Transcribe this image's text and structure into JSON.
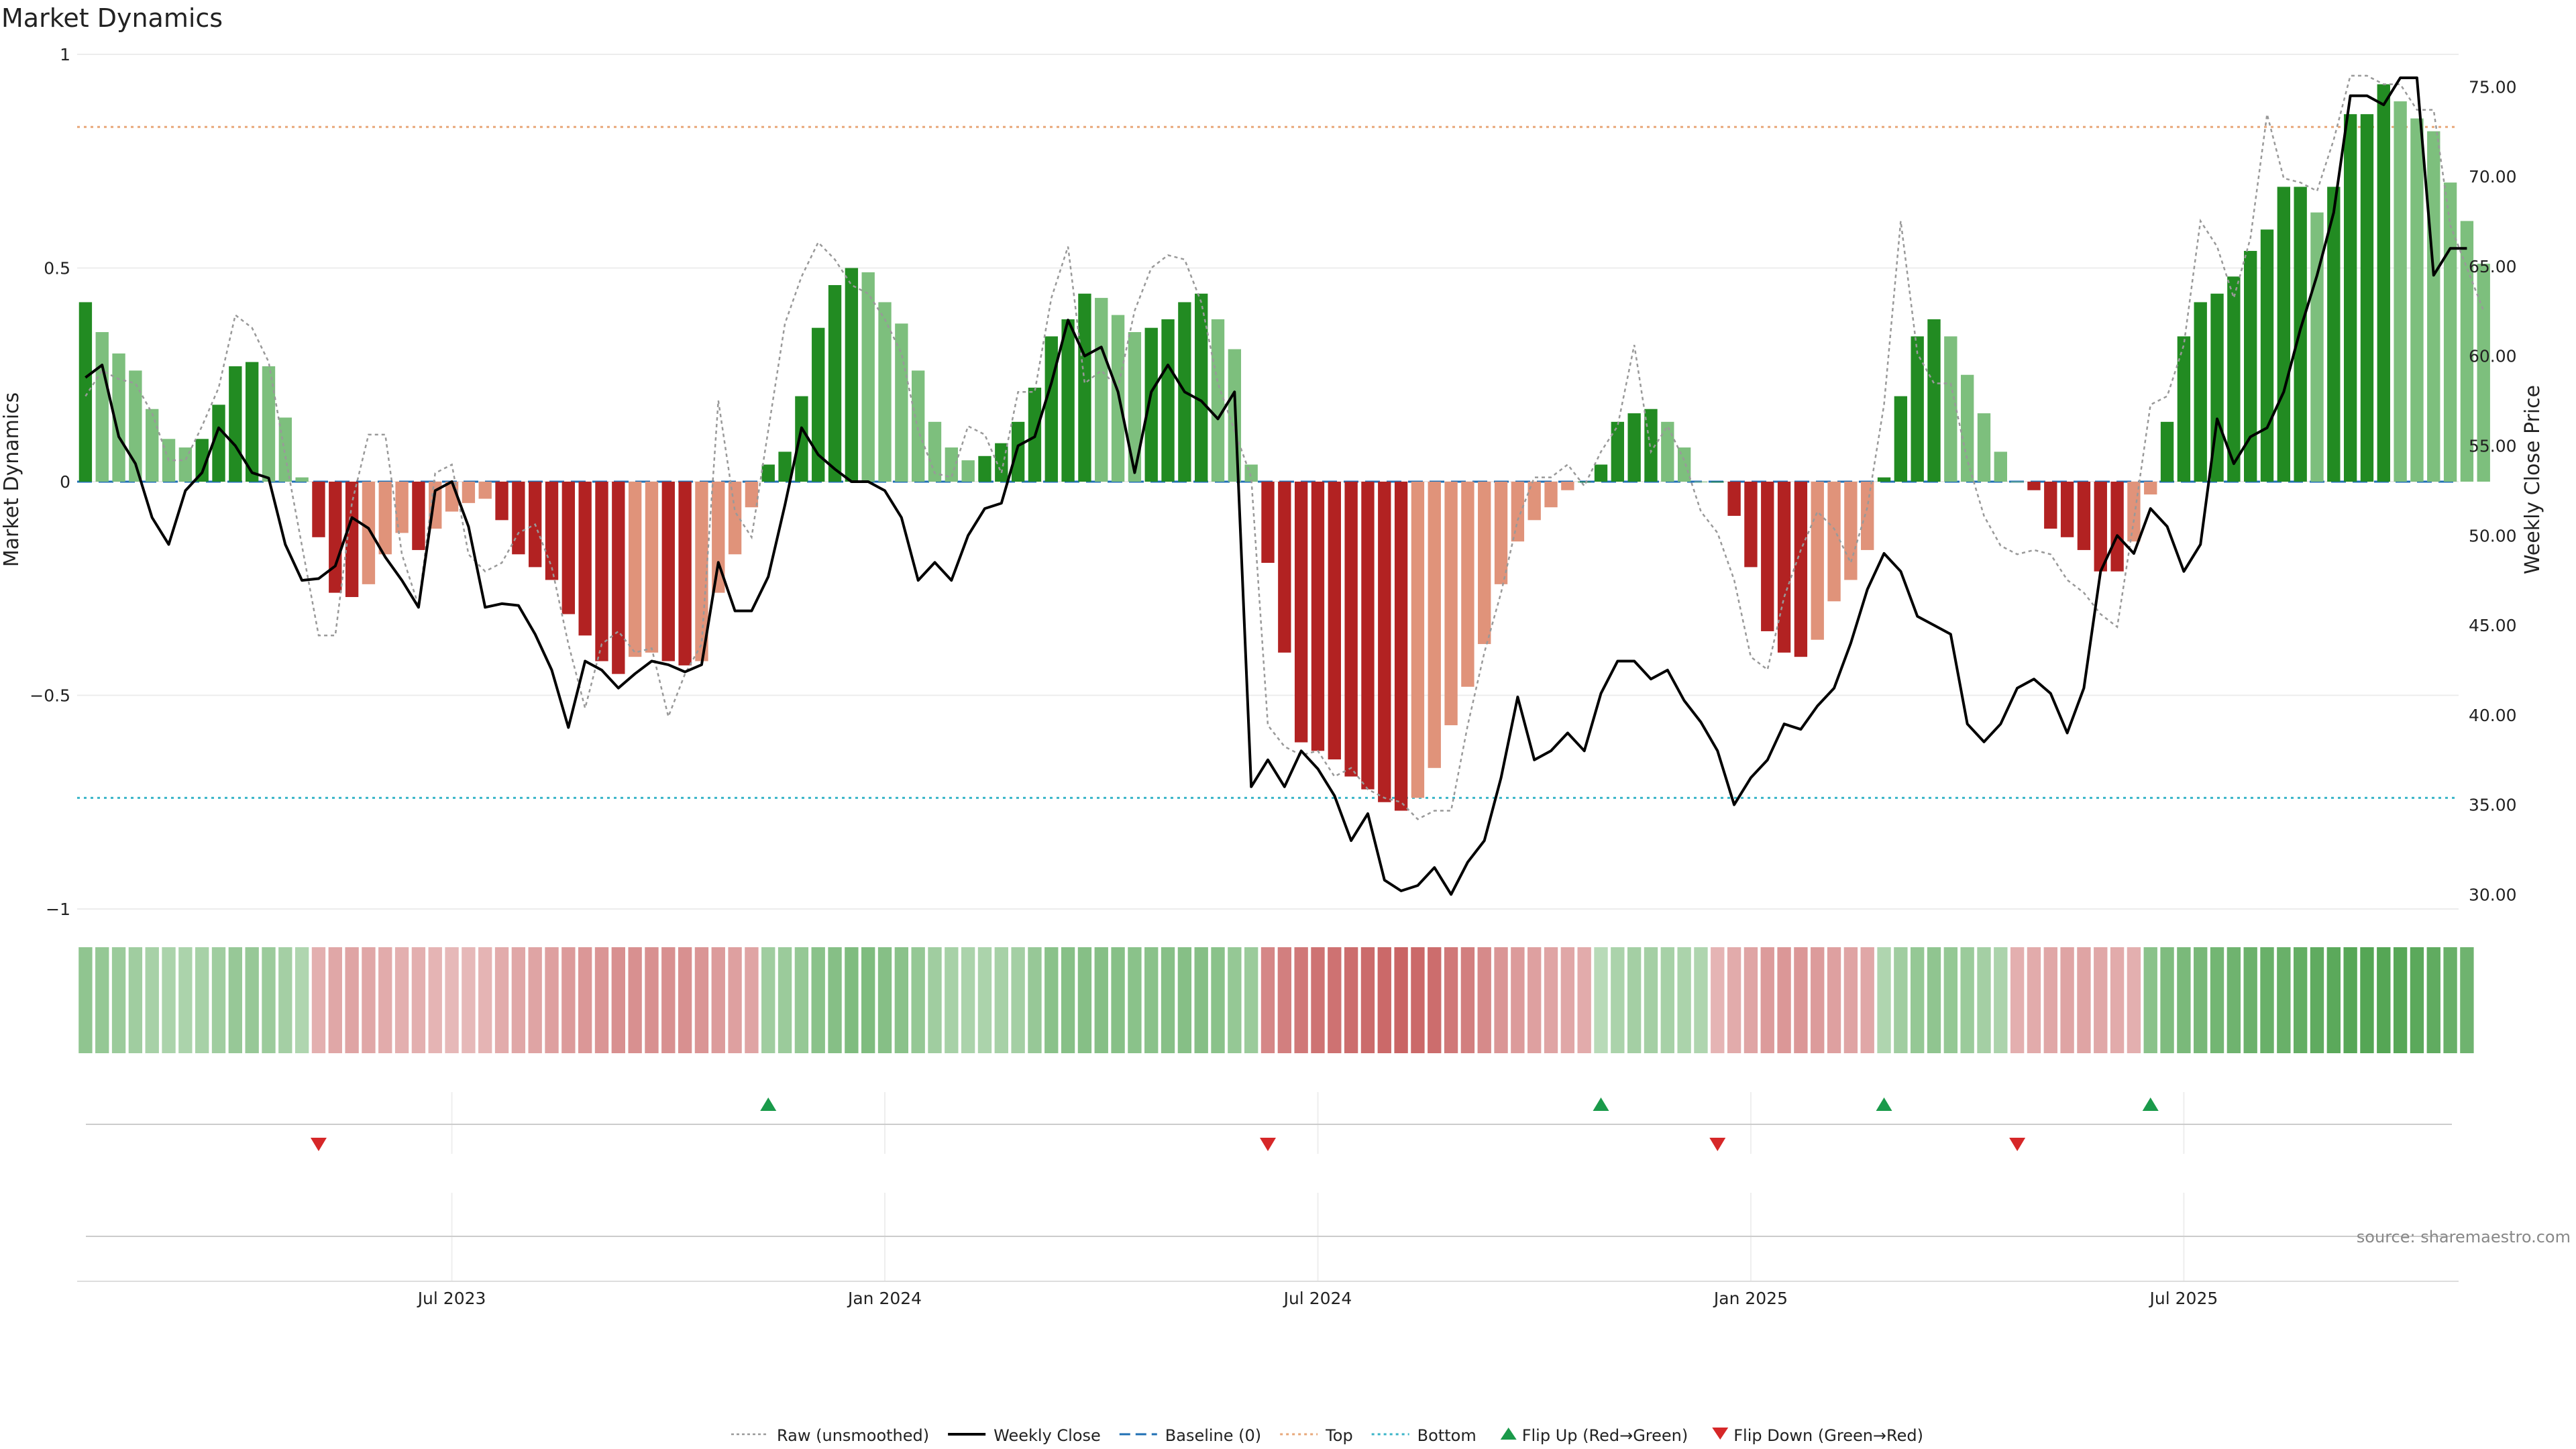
{
  "title": "Market Dynamics",
  "source": "source: sharemaestro.com",
  "colors": {
    "strong_green": "#228b22",
    "light_green": "#7dbf7d",
    "strong_red": "#b22222",
    "light_red": "#e0937a",
    "close": "#000000",
    "raw": "#999999",
    "baseline": "#1f6fb4",
    "top": "#e8a87a",
    "bottom": "#3ab5c8",
    "flip_up": "#1a9a4a",
    "flip_down": "#d62728"
  },
  "legend": [
    {
      "key": "raw",
      "label": "Raw (unsmoothed)",
      "style": "dotted-gray"
    },
    {
      "key": "close",
      "label": "Weekly Close",
      "style": "solid-black"
    },
    {
      "key": "baseline",
      "label": "Baseline (0)",
      "style": "dashed-blue"
    },
    {
      "key": "top",
      "label": "Top",
      "style": "dotted-orange"
    },
    {
      "key": "bottom",
      "label": "Bottom",
      "style": "dotted-cyan"
    },
    {
      "key": "flip_up",
      "label": "Flip Up (Red→Green)",
      "style": "triangle-up"
    },
    {
      "key": "flip_down",
      "label": "Flip Down (Green→Red)",
      "style": "triangle-down"
    }
  ],
  "chart_data": {
    "type": "bar",
    "title": "Market Dynamics",
    "ylabel_left": "Market Dynamics",
    "ylabel_right": "Weekly Close Price",
    "ylim_left": [
      -1.05,
      1.05
    ],
    "ylim_right": [
      28,
      78
    ],
    "yticks_left": [
      {
        "v": 1,
        "label": "1"
      },
      {
        "v": 0.5,
        "label": "0.5"
      },
      {
        "v": 0,
        "label": "0"
      },
      {
        "v": -0.5,
        "label": "−0.5"
      },
      {
        "v": -1,
        "label": "−1"
      }
    ],
    "yticks_right": [
      "30.00",
      "35.00",
      "40.00",
      "45.00",
      "50.00",
      "55.00",
      "60.00",
      "65.00",
      "70.00",
      "75.00"
    ],
    "xlim": [
      0,
      143
    ],
    "x_ticks": [
      {
        "week": 22,
        "label": "Jul 2023"
      },
      {
        "week": 48,
        "label": "Jan 2024"
      },
      {
        "week": 74,
        "label": "Jul 2024"
      },
      {
        "week": 100,
        "label": "Jan 2025"
      },
      {
        "week": 126,
        "label": "Jul 2025"
      }
    ],
    "top_line": 0.83,
    "bottom_line": -0.74,
    "baseline": 0,
    "values": [
      0.42,
      0.35,
      0.3,
      0.26,
      0.17,
      0.1,
      0.08,
      0.1,
      0.18,
      0.27,
      0.28,
      0.27,
      0.15,
      0.01,
      -0.13,
      -0.26,
      -0.27,
      -0.24,
      -0.17,
      -0.12,
      -0.16,
      -0.11,
      -0.07,
      -0.05,
      -0.04,
      -0.09,
      -0.17,
      -0.2,
      -0.23,
      -0.31,
      -0.36,
      -0.42,
      -0.45,
      -0.41,
      -0.4,
      -0.42,
      -0.43,
      -0.42,
      -0.26,
      -0.17,
      -0.06,
      0.04,
      0.07,
      0.2,
      0.36,
      0.46,
      0.5,
      0.49,
      0.42,
      0.37,
      0.26,
      0.14,
      0.08,
      0.05,
      0.06,
      0.09,
      0.14,
      0.22,
      0.34,
      0.38,
      0.44,
      0.43,
      0.39,
      0.35,
      0.36,
      0.38,
      0.42,
      0.44,
      0.38,
      0.31,
      0.04,
      -0.19,
      -0.4,
      -0.61,
      -0.63,
      -0.65,
      -0.69,
      -0.72,
      -0.75,
      -0.77,
      -0.74,
      -0.67,
      -0.57,
      -0.48,
      -0.38,
      -0.24,
      -0.14,
      -0.09,
      -0.06,
      -0.02,
      0.0,
      0.04,
      0.14,
      0.16,
      0.17,
      0.14,
      0.08,
      0.0,
      0.0,
      -0.08,
      -0.2,
      -0.35,
      -0.4,
      -0.41,
      -0.37,
      -0.28,
      -0.23,
      -0.16,
      0.01,
      0.2,
      0.34,
      0.38,
      0.34,
      0.25,
      0.16,
      0.07,
      0.0,
      -0.02,
      -0.11,
      -0.13,
      -0.16,
      -0.21,
      -0.21,
      -0.14,
      -0.03,
      0.14,
      0.34,
      0.42,
      0.44,
      0.48,
      0.54,
      0.59,
      0.69,
      0.69,
      0.63,
      0.69,
      0.86,
      0.86,
      0.93,
      0.89,
      0.85,
      0.82,
      0.7,
      0.61,
      0.51
    ],
    "series": [
      {
        "name": "Weekly Close",
        "values": [
          58.8,
          59.5,
          55.5,
          54.0,
          51.0,
          49.5,
          52.5,
          53.5,
          56.0,
          55.0,
          53.5,
          53.2,
          49.5,
          47.5,
          47.6,
          48.3,
          51.0,
          50.4,
          48.8,
          47.5,
          46.0,
          52.5,
          53.0,
          50.5,
          46.0,
          46.2,
          46.1,
          44.5,
          42.5,
          39.3,
          43.0,
          42.5,
          41.5,
          42.3,
          43.0,
          42.8,
          42.4,
          42.8,
          48.5,
          45.8,
          45.8,
          47.7,
          51.7,
          56.0,
          54.5,
          53.7,
          53.0,
          53.0,
          52.5,
          51.0,
          47.5,
          48.5,
          47.5,
          50.0,
          51.5,
          51.8,
          55.0,
          55.5,
          58.5,
          62.0,
          60.0,
          60.5,
          58.0,
          53.5,
          58.0,
          59.5,
          58.0,
          57.5,
          56.5,
          58.0,
          36.0,
          37.5,
          36.0,
          38.0,
          37.0,
          35.5,
          33.0,
          34.5,
          30.8,
          30.2,
          30.5,
          31.5,
          30.0,
          31.8,
          33.0,
          36.5,
          41.0,
          37.5,
          38.0,
          39.0,
          38.0,
          41.2,
          43.0,
          43.0,
          42.0,
          42.5,
          40.8,
          39.6,
          38.0,
          35.0,
          36.5,
          37.5,
          39.5,
          39.2,
          40.5,
          41.5,
          44.0,
          47.0,
          49.0,
          48.0,
          45.5,
          45.0,
          44.5,
          39.5,
          38.5,
          39.5,
          41.5,
          42.0,
          41.2,
          39.0,
          41.5,
          48.0,
          50.0,
          49.0,
          51.5,
          50.5,
          48.0,
          49.5,
          56.5,
          54.0,
          55.5,
          56.0,
          58.0,
          61.5,
          64.5,
          68.0,
          74.5,
          74.5,
          74.0,
          75.5,
          75.5,
          64.5,
          66.0,
          66.0
        ]
      },
      {
        "name": "Raw (unsmoothed)",
        "values": [
          0.2,
          0.26,
          0.24,
          0.23,
          0.16,
          0.05,
          0.05,
          0.13,
          0.22,
          0.39,
          0.36,
          0.28,
          0.06,
          -0.15,
          -0.36,
          -0.36,
          -0.05,
          0.11,
          0.11,
          -0.17,
          -0.29,
          0.02,
          0.04,
          -0.17,
          -0.21,
          -0.19,
          -0.12,
          -0.1,
          -0.2,
          -0.38,
          -0.53,
          -0.38,
          -0.35,
          -0.4,
          -0.39,
          -0.55,
          -0.45,
          -0.38,
          0.19,
          -0.07,
          -0.13,
          0.12,
          0.37,
          0.48,
          0.56,
          0.52,
          0.46,
          0.44,
          0.38,
          0.3,
          0.12,
          0.02,
          0.01,
          0.13,
          0.11,
          0.02,
          0.21,
          0.21,
          0.43,
          0.55,
          0.23,
          0.26,
          0.22,
          0.4,
          0.5,
          0.53,
          0.52,
          0.42,
          0.23,
          0.12,
          0.01,
          -0.57,
          -0.62,
          -0.64,
          -0.63,
          -0.69,
          -0.67,
          -0.72,
          -0.74,
          -0.75,
          -0.79,
          -0.77,
          -0.77,
          -0.57,
          -0.4,
          -0.26,
          -0.09,
          0.01,
          0.01,
          0.04,
          -0.01,
          0.07,
          0.13,
          0.32,
          0.07,
          0.13,
          0.05,
          -0.07,
          -0.12,
          -0.23,
          -0.41,
          -0.44,
          -0.27,
          -0.16,
          -0.07,
          -0.11,
          -0.19,
          -0.06,
          0.18,
          0.61,
          0.3,
          0.23,
          0.23,
          0.05,
          -0.08,
          -0.15,
          -0.17,
          -0.16,
          -0.17,
          -0.23,
          -0.26,
          -0.31,
          -0.34,
          -0.09,
          0.18,
          0.2,
          0.32,
          0.61,
          0.55,
          0.43,
          0.57,
          0.86,
          0.71,
          0.7,
          0.68,
          0.8,
          0.95,
          0.95,
          0.93,
          0.93,
          0.87,
          0.87,
          0.6,
          0.5,
          0.4
        ]
      }
    ],
    "flips_up": [
      41,
      91,
      108,
      124
    ],
    "flips_down": [
      14,
      71,
      98,
      116
    ],
    "regime_strip": [
      0.45,
      0.42,
      0.38,
      0.35,
      0.3,
      0.28,
      0.28,
      0.3,
      0.35,
      0.4,
      0.4,
      0.38,
      0.32,
      0.25,
      -0.25,
      -0.3,
      -0.32,
      -0.3,
      -0.28,
      -0.25,
      -0.25,
      -0.22,
      -0.2,
      -0.2,
      -0.22,
      -0.28,
      -0.3,
      -0.32,
      -0.35,
      -0.38,
      -0.4,
      -0.42,
      -0.44,
      -0.44,
      -0.44,
      -0.44,
      -0.44,
      -0.42,
      -0.38,
      -0.35,
      -0.32,
      0.35,
      0.38,
      0.42,
      0.48,
      0.52,
      0.55,
      0.55,
      0.52,
      0.48,
      0.42,
      0.35,
      0.3,
      0.28,
      0.28,
      0.3,
      0.32,
      0.4,
      0.48,
      0.5,
      0.52,
      0.52,
      0.5,
      0.48,
      0.48,
      0.5,
      0.52,
      0.52,
      0.48,
      0.42,
      0.38,
      -0.5,
      -0.55,
      -0.6,
      -0.62,
      -0.64,
      -0.66,
      -0.68,
      -0.7,
      -0.72,
      -0.7,
      -0.66,
      -0.6,
      -0.55,
      -0.48,
      -0.42,
      -0.38,
      -0.35,
      -0.32,
      -0.3,
      -0.28,
      0.2,
      0.28,
      0.32,
      0.32,
      0.3,
      0.28,
      0.25,
      -0.22,
      -0.28,
      -0.32,
      -0.38,
      -0.4,
      -0.4,
      -0.38,
      -0.35,
      -0.32,
      -0.3,
      0.25,
      0.35,
      0.42,
      0.45,
      0.42,
      0.38,
      0.32,
      0.28,
      -0.25,
      -0.28,
      -0.3,
      -0.32,
      -0.32,
      -0.3,
      -0.28,
      -0.25,
      0.48,
      0.55,
      0.58,
      0.6,
      0.62,
      0.65,
      0.68,
      0.7,
      0.7,
      0.72,
      0.75,
      0.78,
      0.8,
      0.82,
      0.82,
      0.8,
      0.78,
      0.75,
      0.7,
      0.65
    ]
  }
}
